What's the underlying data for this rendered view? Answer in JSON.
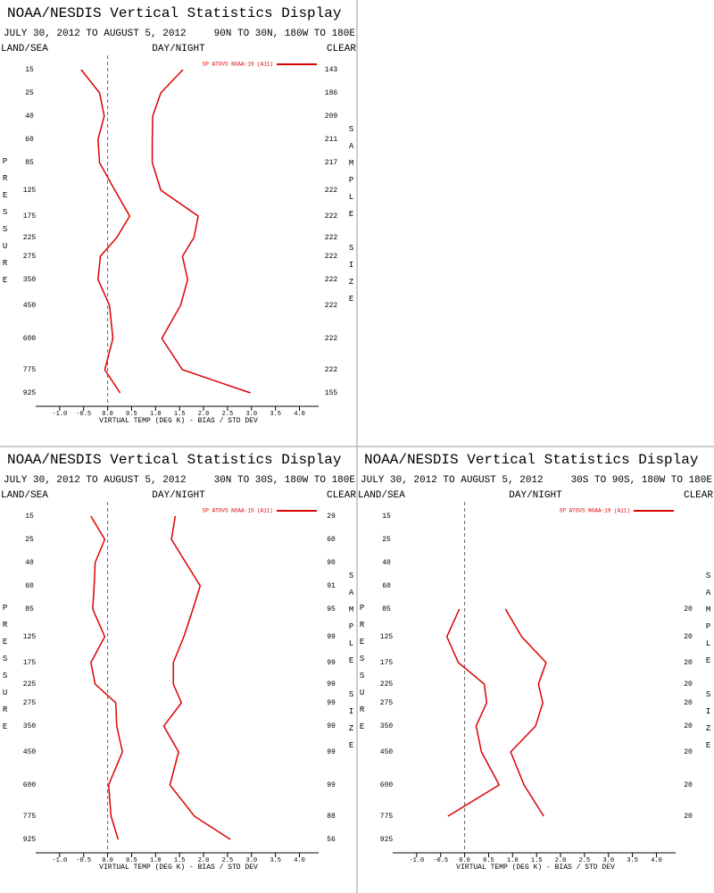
{
  "chart_data": [
    {
      "type": "line",
      "title": "NOAA/NESDIS Vertical Statistics Display",
      "subtitle": "JULY 30, 2012 TO AUGUST 5, 2012",
      "region": "90N TO 30N, 180W TO 180E",
      "filters": [
        "LAND/SEA",
        "DAY/NIGHT",
        "CLEAR"
      ],
      "y_label": "PRESSURE",
      "y2_label": "SAMPLE SIZE",
      "x_label": "VIRTUAL TEMP (DEG K) - BIAS / STD DEV",
      "categories": [
        "15",
        "25",
        "40",
        "60",
        "85",
        "125",
        "175",
        "225",
        "275",
        "350",
        "450",
        "600",
        "775",
        "925"
      ],
      "sample_size": [
        143,
        186,
        209,
        211,
        217,
        222,
        222,
        222,
        222,
        222,
        222,
        222,
        222,
        155
      ],
      "series": [
        {
          "name": "SP ATOVS NOAA-19 (A11)",
          "color": "#dd0000",
          "bias": [
            -0.55,
            -0.17,
            -0.07,
            -0.2,
            -0.17,
            0.15,
            0.46,
            0.19,
            -0.15,
            -0.2,
            0.04,
            0.11,
            -0.06,
            0.26
          ],
          "std_dev": [
            1.57,
            1.11,
            0.94,
            0.93,
            0.93,
            1.11,
            1.89,
            1.8,
            1.56,
            1.67,
            1.52,
            1.13,
            1.56,
            2.98
          ]
        }
      ],
      "xlim": [
        -1.5,
        4.4
      ],
      "xticks": [
        {
          "value": -1,
          "label": "-1.0"
        },
        -0.5,
        {
          "value": 0,
          "label": "0.0"
        },
        0.5,
        {
          "value": 1,
          "label": "1.0"
        },
        1.5,
        {
          "value": 2,
          "label": "2.0"
        },
        2.5,
        {
          "value": 3,
          "label": "3.0"
        },
        3.5,
        {
          "value": 4,
          "label": "4.0"
        }
      ]
    },
    {
      "type": "line",
      "title": "NOAA/NESDIS Vertical Statistics Display",
      "subtitle": "JULY 30, 2012 TO AUGUST 5, 2012",
      "region": "30N TO 30S, 180W TO 180E",
      "filters": [
        "LAND/SEA",
        "DAY/NIGHT",
        "CLEAR"
      ],
      "y_label": "PRESSURE",
      "y2_label": "SAMPLE SIZE",
      "x_label": "VIRTUAL TEMP (DEG K) - BIAS / STD DEV",
      "categories": [
        "15",
        "25",
        "40",
        "60",
        "85",
        "125",
        "175",
        "225",
        "275",
        "350",
        "450",
        "600",
        "775",
        "925"
      ],
      "sample_size": [
        29,
        60,
        90,
        91,
        95,
        99,
        99,
        99,
        99,
        99,
        99,
        99,
        88,
        56
      ],
      "series": [
        {
          "name": "SP ATOVS NOAA-19 (A11)",
          "color": "#dd0000",
          "bias": [
            -0.35,
            -0.06,
            -0.26,
            -0.28,
            -0.31,
            -0.06,
            -0.35,
            -0.26,
            0.17,
            0.19,
            0.31,
            0.02,
            0.07,
            0.22
          ],
          "std_dev": [
            1.41,
            1.33,
            1.63,
            1.93,
            1.78,
            1.59,
            1.37,
            1.37,
            1.54,
            1.17,
            1.48,
            1.3,
            1.81,
            2.56
          ]
        }
      ],
      "xlim": [
        -1.5,
        4.4
      ],
      "xticks": [
        {
          "value": -1,
          "label": "-1.0"
        },
        -0.5,
        {
          "value": 0,
          "label": "0.0"
        },
        0.5,
        {
          "value": 1,
          "label": "1.0"
        },
        1.5,
        {
          "value": 2,
          "label": "2.0"
        },
        2.5,
        {
          "value": 3,
          "label": "3.0"
        },
        3.5,
        {
          "value": 4,
          "label": "4.0"
        }
      ]
    },
    {
      "type": "line",
      "title": "NOAA/NESDIS Vertical Statistics Display",
      "subtitle": "JULY 30, 2012 TO AUGUST 5, 2012",
      "region": "30S TO 90S, 180W TO 180E",
      "filters": [
        "LAND/SEA",
        "DAY/NIGHT",
        "CLEAR"
      ],
      "y_label": "PRESSURE",
      "y2_label": "SAMPLE SIZE",
      "x_label": "VIRTUAL TEMP (DEG K) - BIAS / STD DEV",
      "categories": [
        "15",
        "25",
        "40",
        "60",
        "85",
        "125",
        "175",
        "225",
        "275",
        "350",
        "450",
        "600",
        "775",
        "925"
      ],
      "sample_size": [
        null,
        null,
        null,
        null,
        20,
        20,
        20,
        20,
        20,
        20,
        20,
        20,
        20,
        null
      ],
      "series": [
        {
          "name": "SP ATOVS NOAA-19 (A11)",
          "color": "#dd0000",
          "bias": [
            null,
            null,
            null,
            null,
            -0.11,
            -0.37,
            -0.13,
            0.41,
            0.46,
            0.24,
            0.35,
            0.72,
            -0.35,
            null
          ],
          "std_dev": [
            null,
            null,
            null,
            null,
            0.85,
            1.19,
            1.7,
            1.54,
            1.63,
            1.48,
            0.96,
            1.24,
            1.65,
            null
          ]
        }
      ],
      "xlim": [
        -1.5,
        4.4
      ],
      "xticks": [
        {
          "value": -1,
          "label": "-1.0"
        },
        -0.5,
        {
          "value": 0,
          "label": "0.0"
        },
        0.5,
        {
          "value": 1,
          "label": "1.0"
        },
        1.5,
        {
          "value": 2,
          "label": "2.0"
        },
        2.5,
        {
          "value": 3,
          "label": "3.0"
        },
        3.5,
        {
          "value": 4,
          "label": "4.0"
        }
      ]
    }
  ]
}
